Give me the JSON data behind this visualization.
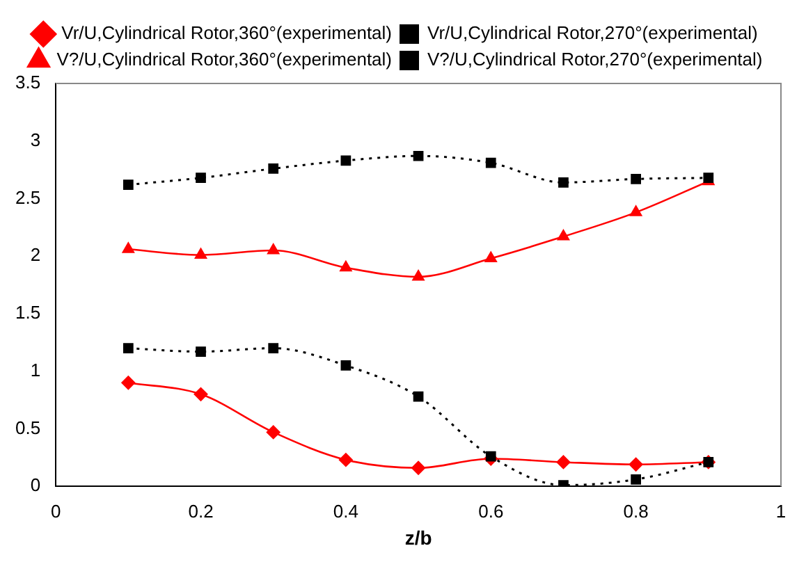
{
  "chart_data": {
    "type": "line",
    "xlabel": "z/b",
    "x": [
      0.1,
      0.2,
      0.3,
      0.4,
      0.5,
      0.6,
      0.7,
      0.8,
      0.9
    ],
    "series": [
      {
        "name": "Vr/U,Cylindrical Rotor,360°(experimental)",
        "color": "#ff0000",
        "marker": "diamond",
        "line_style": "solid",
        "values": [
          0.9,
          0.8,
          0.47,
          0.23,
          0.16,
          0.24,
          0.21,
          0.19,
          0.21
        ]
      },
      {
        "name": "Vr/U,Cylindrical Rotor,270°(experimental)",
        "color": "#000000",
        "marker": "square",
        "line_style": "dotted",
        "values": [
          1.2,
          1.17,
          1.2,
          1.05,
          0.78,
          0.26,
          0.01,
          0.06,
          0.21
        ]
      },
      {
        "name": "V?/U,Cylindrical Rotor,360°(experimental)",
        "color": "#ff0000",
        "marker": "triangle",
        "line_style": "solid",
        "values": [
          2.06,
          2.01,
          2.05,
          1.9,
          1.82,
          1.98,
          2.17,
          2.38,
          2.65
        ]
      },
      {
        "name": "V?/U,Cylindrical Rotor,270°(experimental)",
        "color": "#000000",
        "marker": "square",
        "line_style": "dotted",
        "values": [
          2.62,
          2.68,
          2.76,
          2.83,
          2.87,
          2.81,
          2.64,
          2.67,
          2.68
        ]
      }
    ],
    "xlim": [
      0,
      1
    ],
    "xticks": [
      0,
      0.2,
      0.4,
      0.6,
      0.8,
      1
    ],
    "ylim": [
      0,
      3.5
    ],
    "yticks": [
      0,
      0.5,
      1,
      1.5,
      2,
      2.5,
      3,
      3.5
    ],
    "grid": false,
    "legend": "top"
  }
}
